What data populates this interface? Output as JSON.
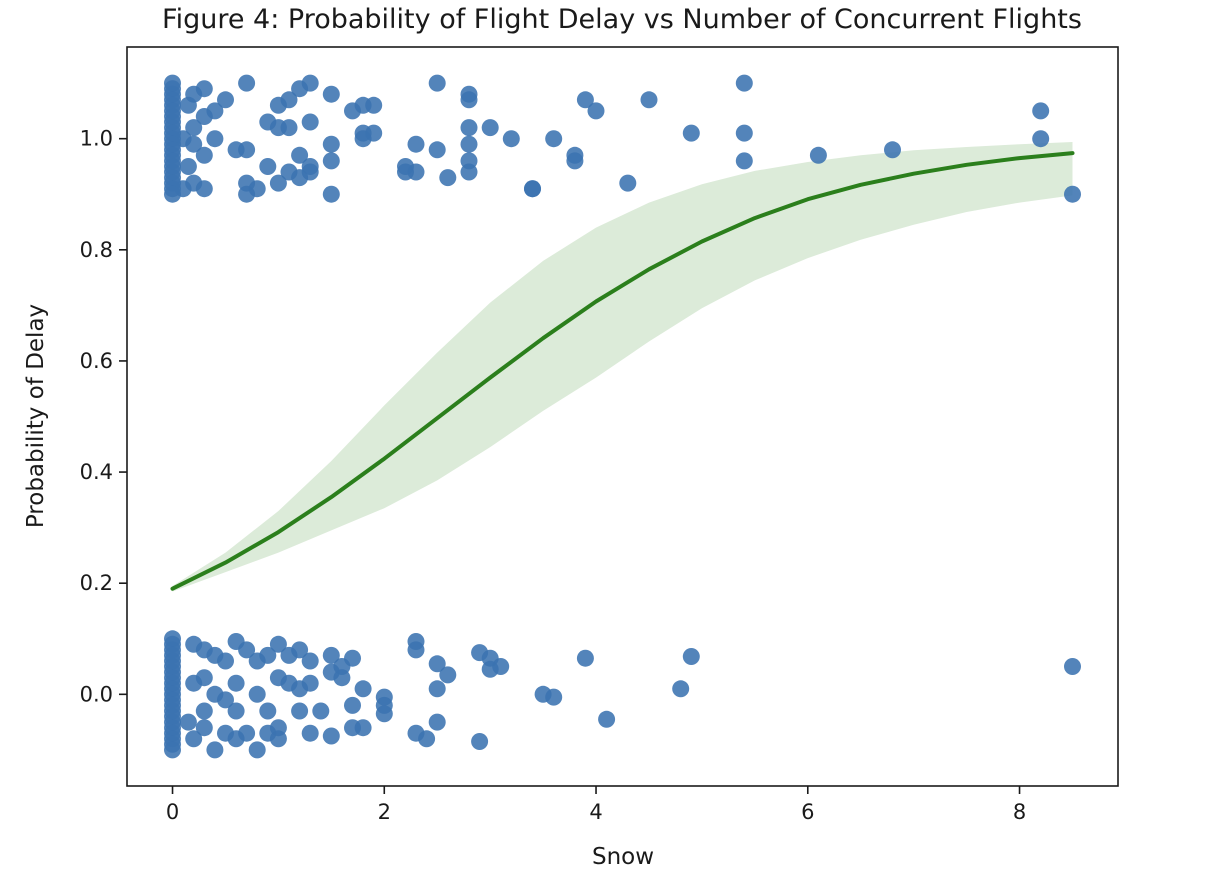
{
  "chart_data": {
    "type": "scatter",
    "title": "Figure 4: Probability of Flight Delay vs Number of Concurrent Flights",
    "xlabel": "Snow",
    "ylabel": "Probability of Delay",
    "xlim": [
      -0.43,
      8.93
    ],
    "ylim": [
      -0.165,
      1.165
    ],
    "xticks": [
      0,
      2,
      4,
      6,
      8
    ],
    "xtick_labels": [
      "0",
      "2",
      "4",
      "6",
      "8"
    ],
    "yticks": [
      0.0,
      0.2,
      0.4,
      0.6,
      0.8,
      1.0
    ],
    "ytick_labels": [
      "0.0",
      "0.2",
      "0.4",
      "0.6",
      "0.8",
      "1.0"
    ],
    "grid": false,
    "colors": {
      "points": "#3b73b1",
      "curve": "#2b7f1c",
      "band": "#dcebd9",
      "axes": "#1a1a1a"
    },
    "series": [
      {
        "values": [
          [
            0.7,
            1.1
          ],
          [
            1.0,
            1.06
          ],
          [
            1.1,
            1.07
          ],
          [
            1.2,
            1.09
          ],
          [
            1.3,
            1.1
          ],
          [
            1.5,
            1.08
          ],
          [
            1.7,
            1.05
          ],
          [
            1.8,
            1.06
          ],
          [
            1.9,
            1.06
          ],
          [
            2.5,
            1.1
          ],
          [
            2.8,
            1.08
          ],
          [
            2.8,
            1.07
          ],
          [
            3.9,
            1.07
          ],
          [
            4.0,
            1.05
          ],
          [
            4.5,
            1.07
          ],
          [
            5.4,
            1.1
          ],
          [
            8.2,
            1.05
          ],
          [
            0.5,
            1.07
          ],
          [
            0.4,
            1.05
          ],
          [
            0.3,
            1.09
          ],
          [
            0.2,
            1.08
          ],
          [
            0.15,
            1.06
          ],
          [
            0.3,
            1.04
          ],
          [
            0.6,
            0.98
          ],
          [
            0.7,
            0.98
          ],
          [
            0.9,
            1.03
          ],
          [
            1.0,
            1.02
          ],
          [
            1.1,
            1.02
          ],
          [
            1.3,
            1.03
          ],
          [
            1.5,
            0.99
          ],
          [
            1.8,
            1.01
          ],
          [
            1.8,
            1.0
          ],
          [
            1.9,
            1.01
          ],
          [
            2.3,
            0.99
          ],
          [
            2.5,
            0.98
          ],
          [
            2.8,
            1.02
          ],
          [
            2.8,
            0.99
          ],
          [
            3.0,
            1.02
          ],
          [
            3.2,
            1.0
          ],
          [
            3.6,
            1.0
          ],
          [
            3.8,
            0.97
          ],
          [
            4.9,
            1.01
          ],
          [
            5.4,
            1.01
          ],
          [
            8.2,
            1.0
          ],
          [
            0.1,
            1.0
          ],
          [
            0.2,
            0.99
          ],
          [
            0.3,
            0.97
          ],
          [
            0.4,
            1.0
          ],
          [
            0.2,
            1.02
          ],
          [
            0.7,
            0.92
          ],
          [
            0.7,
            0.9
          ],
          [
            0.8,
            0.91
          ],
          [
            0.9,
            0.95
          ],
          [
            1.0,
            0.92
          ],
          [
            1.1,
            0.94
          ],
          [
            1.2,
            0.97
          ],
          [
            1.2,
            0.93
          ],
          [
            1.3,
            0.95
          ],
          [
            1.3,
            0.94
          ],
          [
            1.5,
            0.96
          ],
          [
            1.5,
            0.9
          ],
          [
            2.2,
            0.95
          ],
          [
            2.2,
            0.94
          ],
          [
            2.3,
            0.94
          ],
          [
            2.6,
            0.93
          ],
          [
            2.8,
            0.96
          ],
          [
            2.8,
            0.94
          ],
          [
            3.4,
            0.91
          ],
          [
            3.4,
            0.91
          ],
          [
            3.8,
            0.96
          ],
          [
            4.3,
            0.92
          ],
          [
            5.4,
            0.96
          ],
          [
            6.1,
            0.97
          ],
          [
            6.8,
            0.98
          ],
          [
            8.5,
            0.9
          ],
          [
            0.1,
            0.91
          ],
          [
            0.2,
            0.92
          ],
          [
            0.3,
            0.91
          ],
          [
            0.15,
            0.95
          ],
          [
            0.0,
            1.1
          ],
          [
            0.0,
            1.09
          ],
          [
            0.0,
            1.08
          ],
          [
            0.0,
            1.07
          ],
          [
            0.0,
            1.06
          ],
          [
            0.0,
            1.05
          ],
          [
            0.0,
            1.04
          ],
          [
            0.0,
            1.03
          ],
          [
            0.0,
            1.02
          ],
          [
            0.0,
            1.01
          ],
          [
            0.0,
            1.0
          ],
          [
            0.0,
            0.99
          ],
          [
            0.0,
            0.98
          ],
          [
            0.0,
            0.97
          ],
          [
            0.0,
            0.96
          ],
          [
            0.0,
            0.95
          ],
          [
            0.0,
            0.94
          ],
          [
            0.0,
            0.93
          ],
          [
            0.0,
            0.92
          ],
          [
            0.0,
            0.91
          ],
          [
            0.0,
            0.9
          ],
          [
            0.6,
            0.095
          ],
          [
            0.7,
            0.08
          ],
          [
            1.0,
            0.09
          ],
          [
            1.1,
            0.07
          ],
          [
            1.2,
            0.08
          ],
          [
            1.3,
            0.06
          ],
          [
            1.5,
            0.07
          ],
          [
            1.6,
            0.05
          ],
          [
            1.7,
            0.065
          ],
          [
            2.3,
            0.095
          ],
          [
            2.3,
            0.08
          ],
          [
            2.5,
            0.055
          ],
          [
            2.6,
            0.035
          ],
          [
            2.9,
            0.075
          ],
          [
            3.0,
            0.065
          ],
          [
            3.0,
            0.045
          ],
          [
            3.1,
            0.05
          ],
          [
            3.9,
            0.065
          ],
          [
            4.9,
            0.068
          ],
          [
            8.5,
            0.05
          ],
          [
            0.4,
            0.07
          ],
          [
            0.5,
            0.06
          ],
          [
            0.3,
            0.08
          ],
          [
            0.2,
            0.09
          ],
          [
            0.8,
            0.06
          ],
          [
            0.9,
            0.07
          ],
          [
            0.6,
            0.02
          ],
          [
            0.8,
            0.0
          ],
          [
            1.0,
            0.03
          ],
          [
            1.1,
            0.02
          ],
          [
            1.2,
            0.01
          ],
          [
            1.3,
            0.02
          ],
          [
            1.5,
            0.04
          ],
          [
            1.6,
            0.03
          ],
          [
            1.8,
            0.01
          ],
          [
            2.0,
            -0.005
          ],
          [
            2.5,
            0.01
          ],
          [
            3.5,
            0.0
          ],
          [
            3.6,
            -0.005
          ],
          [
            4.8,
            0.01
          ],
          [
            0.3,
            0.03
          ],
          [
            0.4,
            0.0
          ],
          [
            0.5,
            -0.01
          ],
          [
            0.2,
            0.02
          ],
          [
            0.5,
            -0.07
          ],
          [
            0.6,
            -0.08
          ],
          [
            0.7,
            -0.07
          ],
          [
            0.8,
            -0.1
          ],
          [
            0.9,
            -0.07
          ],
          [
            1.0,
            -0.08
          ],
          [
            1.0,
            -0.06
          ],
          [
            1.3,
            -0.07
          ],
          [
            1.5,
            -0.075
          ],
          [
            1.7,
            -0.06
          ],
          [
            1.8,
            -0.06
          ],
          [
            2.0,
            -0.035
          ],
          [
            2.3,
            -0.07
          ],
          [
            2.4,
            -0.08
          ],
          [
            2.5,
            -0.05
          ],
          [
            2.9,
            -0.085
          ],
          [
            4.1,
            -0.045
          ],
          [
            0.3,
            -0.06
          ],
          [
            0.4,
            -0.1
          ],
          [
            0.2,
            -0.08
          ],
          [
            0.3,
            -0.03
          ],
          [
            0.6,
            -0.03
          ],
          [
            0.9,
            -0.03
          ],
          [
            1.2,
            -0.03
          ],
          [
            1.4,
            -0.03
          ],
          [
            1.7,
            -0.02
          ],
          [
            2.0,
            -0.02
          ],
          [
            0.15,
            -0.05
          ],
          [
            0.0,
            0.1
          ],
          [
            0.0,
            0.09
          ],
          [
            0.0,
            0.08
          ],
          [
            0.0,
            0.07
          ],
          [
            0.0,
            0.06
          ],
          [
            0.0,
            0.05
          ],
          [
            0.0,
            0.04
          ],
          [
            0.0,
            0.03
          ],
          [
            0.0,
            0.02
          ],
          [
            0.0,
            0.01
          ],
          [
            0.0,
            0.0
          ],
          [
            0.0,
            -0.01
          ],
          [
            0.0,
            -0.02
          ],
          [
            0.0,
            -0.03
          ],
          [
            0.0,
            -0.04
          ],
          [
            0.0,
            -0.05
          ],
          [
            0.0,
            -0.06
          ],
          [
            0.0,
            -0.07
          ],
          [
            0.0,
            -0.08
          ],
          [
            0.0,
            -0.09
          ],
          [
            0.0,
            -0.1
          ]
        ]
      },
      {
        "x": [
          0.0,
          0.5,
          1.0,
          1.5,
          2.0,
          2.5,
          3.0,
          3.5,
          4.0,
          4.5,
          5.0,
          5.5,
          6.0,
          6.5,
          7.0,
          7.5,
          8.0,
          8.5
        ],
        "values": [
          0.19,
          0.237,
          0.292,
          0.355,
          0.424,
          0.497,
          0.57,
          0.641,
          0.707,
          0.765,
          0.815,
          0.857,
          0.891,
          0.917,
          0.937,
          0.953,
          0.965,
          0.974
        ]
      },
      {
        "x": [
          0.0,
          0.5,
          1.0,
          1.5,
          2.0,
          2.5,
          3.0,
          3.5,
          4.0,
          4.5,
          5.0,
          5.5,
          6.0,
          6.5,
          7.0,
          7.5,
          8.0,
          8.5
        ],
        "lower": [
          0.185,
          0.22,
          0.255,
          0.295,
          0.335,
          0.385,
          0.445,
          0.51,
          0.57,
          0.635,
          0.695,
          0.745,
          0.785,
          0.818,
          0.845,
          0.868,
          0.885,
          0.898
        ],
        "upper": [
          0.195,
          0.255,
          0.33,
          0.42,
          0.52,
          0.615,
          0.705,
          0.78,
          0.84,
          0.885,
          0.918,
          0.942,
          0.958,
          0.97,
          0.979,
          0.985,
          0.99,
          0.994
        ]
      }
    ]
  }
}
